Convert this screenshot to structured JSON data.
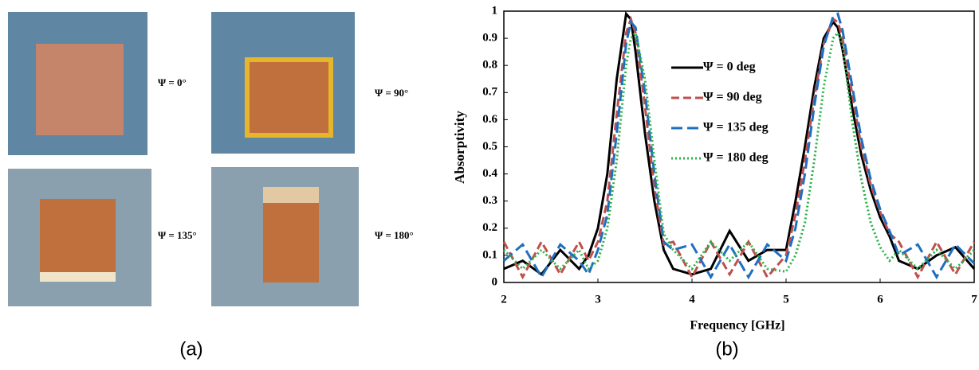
{
  "panel_a": {
    "caption": "(a)",
    "photos": [
      {
        "label": "Ψ = 0°"
      },
      {
        "label": "Ψ = 90°"
      },
      {
        "label": "Ψ = 135°"
      },
      {
        "label": "Ψ = 180°"
      }
    ]
  },
  "chart_data": {
    "type": "line",
    "caption": "(b)",
    "x_label": "Frequency [GHz]",
    "y_label": "Absorptivity",
    "x": [
      2,
      2.2,
      2.4,
      2.6,
      2.8,
      2.9,
      3.0,
      3.1,
      3.2,
      3.3,
      3.35,
      3.4,
      3.5,
      3.6,
      3.7,
      3.8,
      4.0,
      4.2,
      4.4,
      4.6,
      4.8,
      5.0,
      5.1,
      5.2,
      5.3,
      5.4,
      5.5,
      5.55,
      5.6,
      5.7,
      5.8,
      5.9,
      6.0,
      6.1,
      6.2,
      6.4,
      6.6,
      6.8,
      7.0
    ],
    "series": [
      {
        "name": "Ψ = 0 deg",
        "color": "#000000",
        "dash": "solid",
        "values": [
          0.05,
          0.08,
          0.03,
          0.12,
          0.05,
          0.1,
          0.2,
          0.4,
          0.75,
          0.99,
          0.97,
          0.85,
          0.55,
          0.3,
          0.12,
          0.05,
          0.03,
          0.05,
          0.19,
          0.08,
          0.12,
          0.12,
          0.3,
          0.5,
          0.72,
          0.9,
          0.96,
          0.94,
          0.86,
          0.65,
          0.47,
          0.34,
          0.24,
          0.17,
          0.08,
          0.05,
          0.1,
          0.13,
          0.05
        ]
      },
      {
        "name": "Ψ = 90 deg",
        "color": "#c0504d",
        "dash": "dashed",
        "values": [
          0.15,
          0.02,
          0.15,
          0.03,
          0.15,
          0.08,
          0.15,
          0.3,
          0.62,
          0.92,
          0.97,
          0.92,
          0.65,
          0.35,
          0.14,
          0.15,
          0.02,
          0.15,
          0.03,
          0.15,
          0.02,
          0.1,
          0.25,
          0.45,
          0.68,
          0.88,
          0.97,
          0.96,
          0.9,
          0.7,
          0.5,
          0.36,
          0.26,
          0.18,
          0.15,
          0.02,
          0.15,
          0.03,
          0.15
        ]
      },
      {
        "name": "Ψ = 135 deg",
        "color": "#1f6fc0",
        "dash": "longdash",
        "values": [
          0.08,
          0.14,
          0.02,
          0.14,
          0.08,
          0.03,
          0.12,
          0.25,
          0.55,
          0.88,
          0.96,
          0.94,
          0.7,
          0.4,
          0.15,
          0.12,
          0.14,
          0.02,
          0.14,
          0.02,
          0.14,
          0.08,
          0.2,
          0.4,
          0.65,
          0.87,
          0.98,
          0.99,
          0.93,
          0.73,
          0.53,
          0.38,
          0.27,
          0.19,
          0.1,
          0.14,
          0.02,
          0.14,
          0.07
        ]
      },
      {
        "name": "Ψ = 180 deg",
        "color": "#2db34a",
        "dash": "dotted",
        "values": [
          0.12,
          0.05,
          0.12,
          0.05,
          0.12,
          0.05,
          0.08,
          0.2,
          0.45,
          0.8,
          0.9,
          0.92,
          0.75,
          0.45,
          0.18,
          0.12,
          0.05,
          0.15,
          0.08,
          0.15,
          0.05,
          0.04,
          0.1,
          0.22,
          0.45,
          0.72,
          0.9,
          0.92,
          0.88,
          0.6,
          0.38,
          0.22,
          0.13,
          0.08,
          0.12,
          0.05,
          0.12,
          0.05,
          0.12
        ]
      }
    ],
    "xlim": [
      2,
      7
    ],
    "xticks": [
      2,
      3,
      4,
      5,
      6,
      7
    ],
    "ylim": [
      0,
      1
    ],
    "yticks": [
      0,
      0.1,
      0.2,
      0.3,
      0.4,
      0.5,
      0.6,
      0.7,
      0.8,
      0.9,
      1
    ],
    "grid": false
  }
}
